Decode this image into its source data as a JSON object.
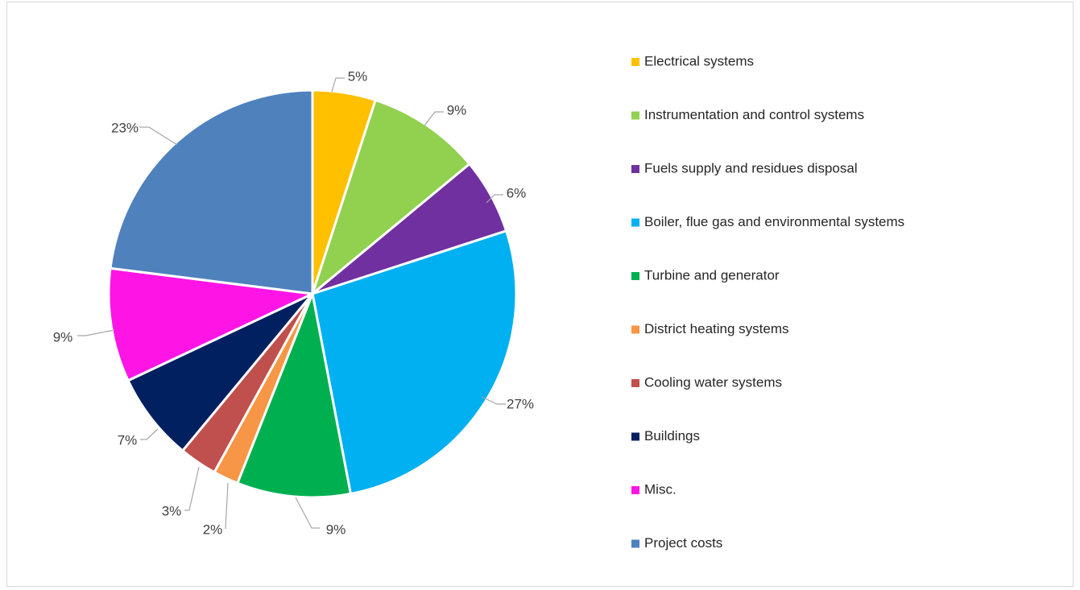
{
  "chart_data": {
    "type": "pie",
    "title": "",
    "legend_position": "right",
    "slices": [
      {
        "label": "Electrical systems",
        "value": 5,
        "display": "5%",
        "color": "#FFC000"
      },
      {
        "label": "Instrumentation and control systems",
        "value": 9,
        "display": "9%",
        "color": "#92D050"
      },
      {
        "label": "Fuels supply and residues disposal",
        "value": 6,
        "display": "6%",
        "color": "#7030A0"
      },
      {
        "label": "Boiler, flue gas and environmental systems",
        "value": 27,
        "display": "27%",
        "color": "#00B0F0"
      },
      {
        "label": "Turbine and generator",
        "value": 9,
        "display": "9%",
        "color": "#00B050"
      },
      {
        "label": "District heating systems",
        "value": 2,
        "display": "2%",
        "color": "#F79646"
      },
      {
        "label": "Cooling water systems",
        "value": 3,
        "display": "3%",
        "color": "#C0504D"
      },
      {
        "label": "Buildings",
        "value": 7,
        "display": "7%",
        "color": "#002060"
      },
      {
        "label": "Misc.",
        "value": 9,
        "display": "9%",
        "color": "#FF14E6"
      },
      {
        "label": "Project costs",
        "value": 23,
        "display": "23%",
        "color": "#4F81BD"
      }
    ]
  }
}
